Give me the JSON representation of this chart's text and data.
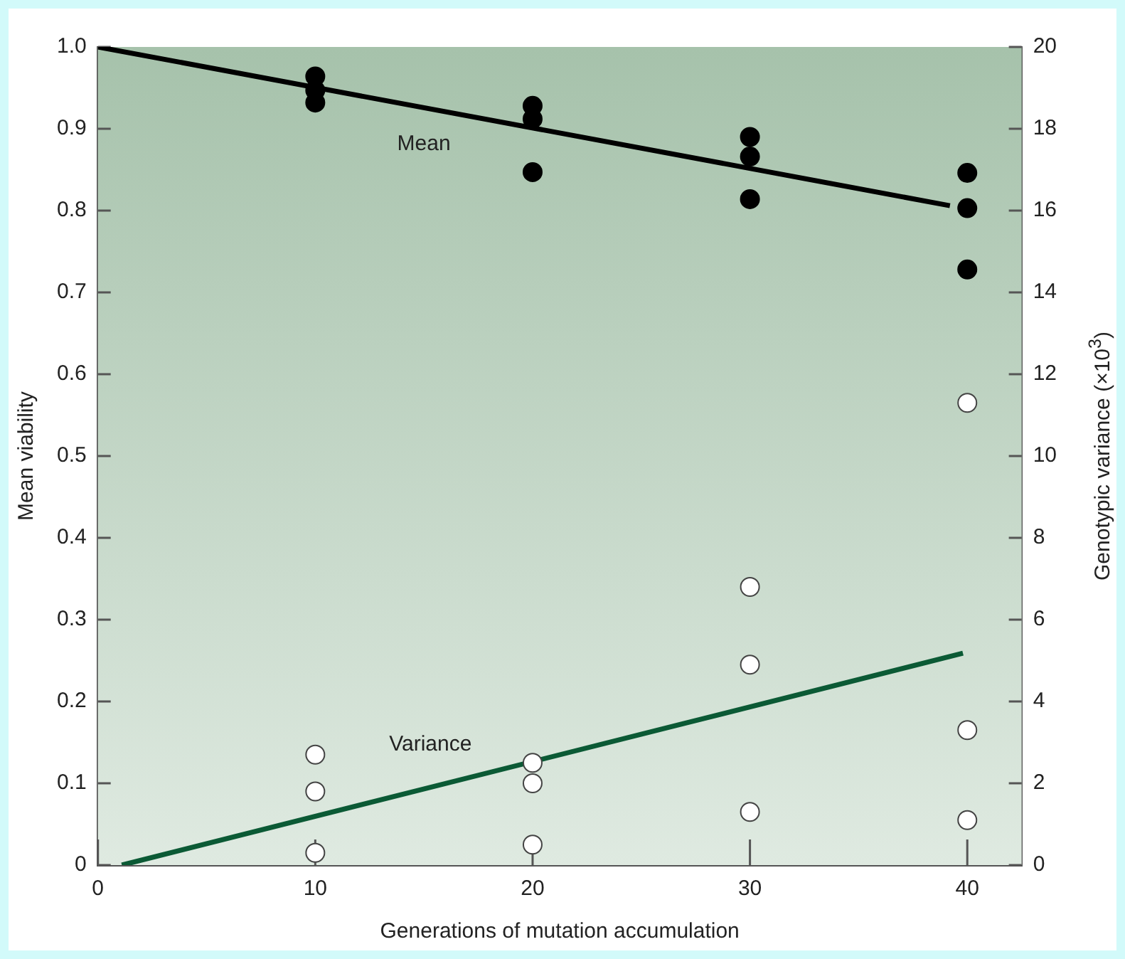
{
  "chart_data": {
    "type": "scatter",
    "xlabel": "Generations of mutation accumulation",
    "ylabel": "Mean viability",
    "y2label": "Genotypic variance (×10$^{3}$)",
    "xlim": [
      0,
      42.5
    ],
    "xticks": [
      0,
      10,
      20,
      30,
      40
    ],
    "ylim": [
      0,
      1
    ],
    "yticks": [
      0,
      0.1,
      0.2,
      0.3,
      0.4,
      0.5,
      0.6,
      0.7,
      0.8,
      0.9,
      {
        "value": 1,
        "label": "1.0"
      }
    ],
    "y2lim": [
      0,
      20
    ],
    "y2ticks": [
      0,
      2,
      4,
      6,
      8,
      10,
      12,
      14,
      16,
      18,
      20
    ],
    "grid": false,
    "legend": false,
    "marker": "circle",
    "series": [
      {
        "color": "#000000",
        "x": [
          10,
          10,
          10,
          20,
          20,
          20,
          30,
          30,
          30,
          40,
          40,
          40
        ],
        "values": [
          0.964,
          0.947,
          0.932,
          0.928,
          0.912,
          0.847,
          0.89,
          0.866,
          0.814,
          0.846,
          0.803,
          0.728
        ]
      },
      {
        "color": "#ffffff",
        "axis": "y2",
        "x": [
          10,
          10,
          10,
          20,
          20,
          20,
          30,
          30,
          30,
          40,
          40,
          40
        ],
        "values": [
          2.7,
          1.8,
          0.3,
          2.5,
          2.0,
          0.5,
          6.8,
          4.9,
          1.3,
          11.3,
          3.3,
          1.1
        ]
      },
      {
        "type": "line",
        "color": "#000000",
        "marker": "none",
        "x": [
          0,
          39.2
        ],
        "values": [
          1.0,
          0.806
        ]
      },
      {
        "type": "line",
        "color": "#0b5a35",
        "marker": "none",
        "axis": "y2",
        "x": [
          1.1,
          39.8
        ],
        "values": [
          0,
          5.18
        ]
      }
    ],
    "annotations": [
      {
        "text": "Mean",
        "x": 15,
        "y": 0.926
      },
      {
        "text": "Variance",
        "x": 15.3,
        "y": 0.095
      }
    ]
  }
}
